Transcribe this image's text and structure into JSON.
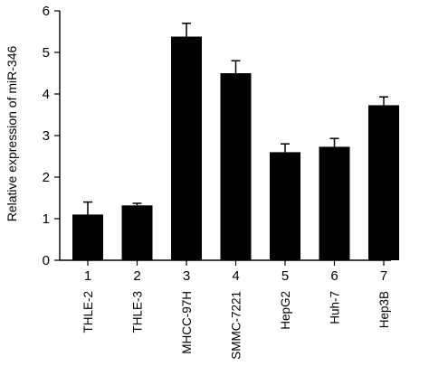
{
  "chart_data": {
    "type": "bar",
    "ylabel": "Relative expression of miR-346",
    "xlabel": "",
    "ylim": [
      0,
      6
    ],
    "yticks": [
      0,
      1,
      2,
      3,
      4,
      5,
      6
    ],
    "categories": [
      "1",
      "2",
      "3",
      "4",
      "5",
      "6",
      "7"
    ],
    "category_names": [
      "THLE-2",
      "THLE-3",
      "MHCC-97H",
      "SMMC-7221",
      "HepG2",
      "Huh-7",
      "Hep3B"
    ],
    "values": [
      1.1,
      1.32,
      5.38,
      4.5,
      2.6,
      2.73,
      3.73
    ],
    "errors": [
      0.3,
      0.05,
      0.32,
      0.3,
      0.2,
      0.2,
      0.2
    ],
    "bar_color": "#000000",
    "grid": false
  }
}
